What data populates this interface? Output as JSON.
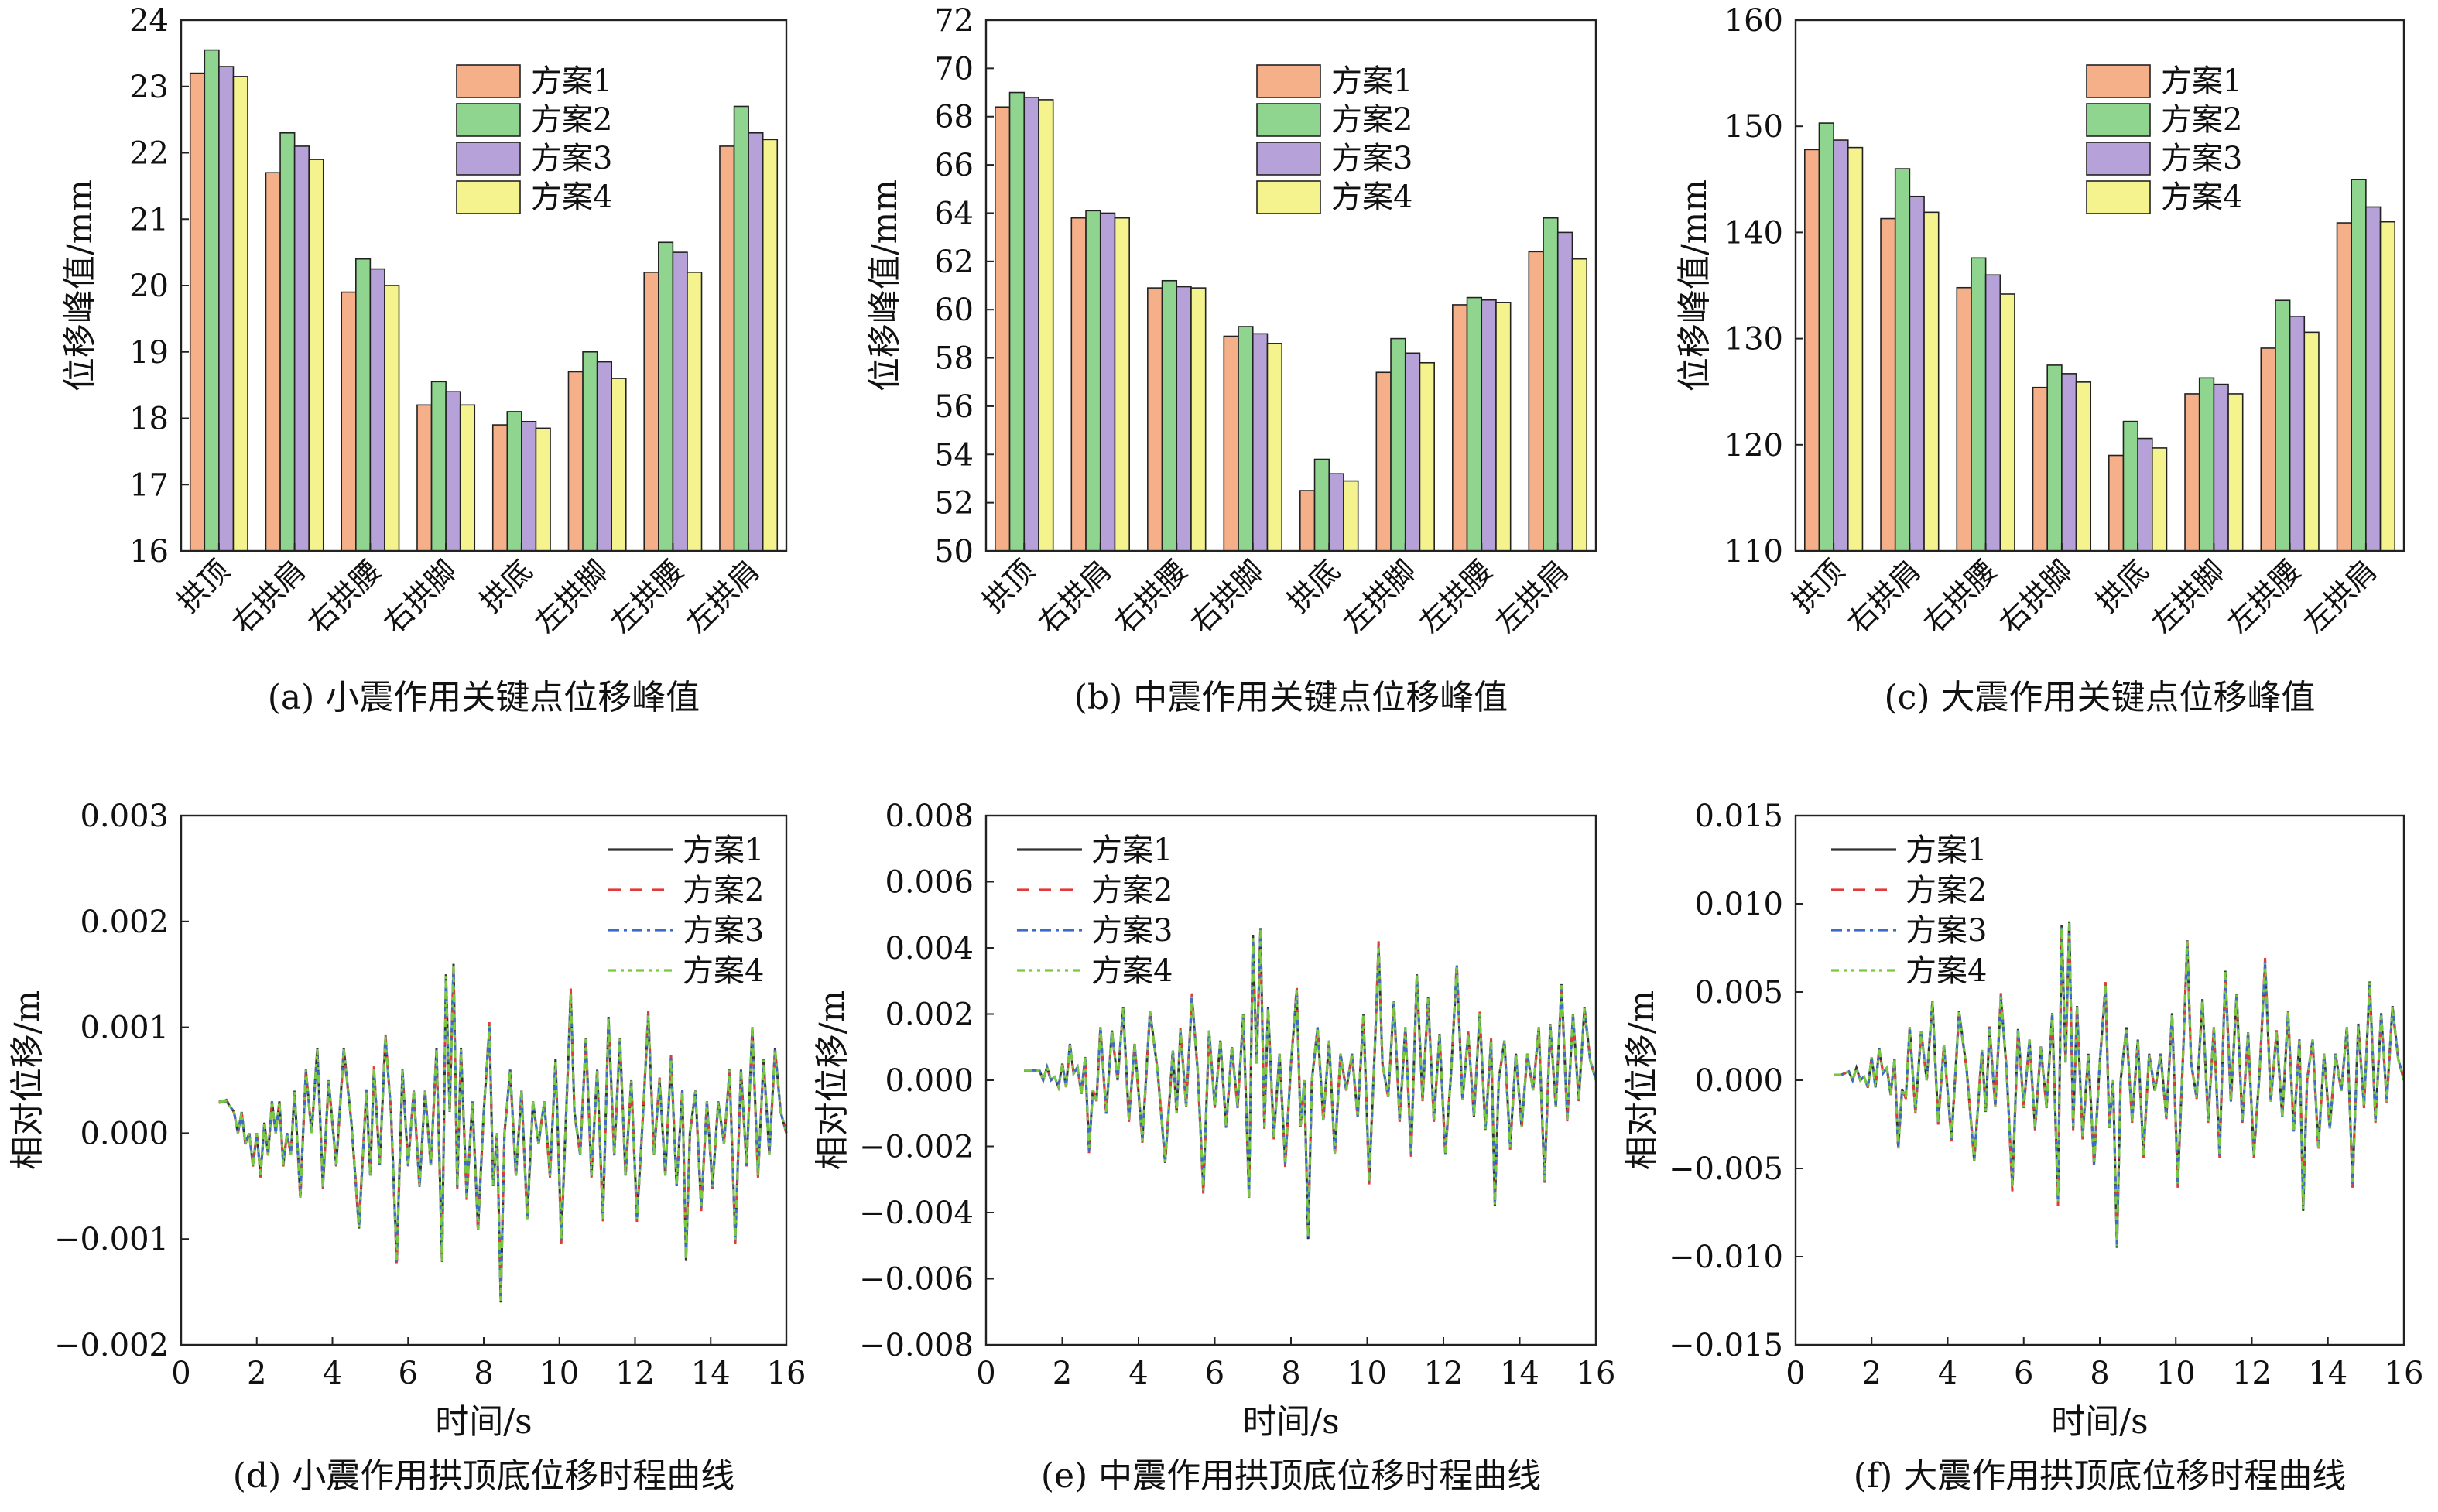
{
  "series_colors": [
    "#f5b089",
    "#8fd48f",
    "#b6a2d8",
    "#f4f38d"
  ],
  "line_colors": [
    "#333333",
    "#e03a3a",
    "#3d6cc8",
    "#78c93d"
  ],
  "chart_data": [
    {
      "type": "bar",
      "caption": "(a) 小震作用关键点位移峰值",
      "categories": [
        "拱顶",
        "右拱肩",
        "右拱腰",
        "右拱脚",
        "拱底",
        "左拱脚",
        "左拱腰",
        "左拱肩"
      ],
      "series": [
        {
          "name": "方案1",
          "values": [
            23.2,
            21.7,
            19.9,
            18.2,
            17.9,
            18.7,
            20.2,
            22.1
          ]
        },
        {
          "name": "方案2",
          "values": [
            23.55,
            22.3,
            20.4,
            18.55,
            18.1,
            19.0,
            20.65,
            22.7
          ]
        },
        {
          "name": "方案3",
          "values": [
            23.3,
            22.1,
            20.25,
            18.4,
            17.95,
            18.85,
            20.5,
            22.3
          ]
        },
        {
          "name": "方案4",
          "values": [
            23.15,
            21.9,
            20.0,
            18.2,
            17.85,
            18.6,
            20.2,
            22.2
          ]
        }
      ],
      "ylabel": "位移峰值/mm",
      "ylim": [
        16,
        24
      ],
      "yticks": [
        "16",
        "17",
        "18",
        "19",
        "20",
        "21",
        "22",
        "23",
        "24"
      ],
      "legend": "top-right",
      "grid": false
    },
    {
      "type": "bar",
      "caption": "(b) 中震作用关键点位移峰值",
      "categories": [
        "拱顶",
        "右拱肩",
        "右拱腰",
        "右拱脚",
        "拱底",
        "左拱脚",
        "左拱腰",
        "左拱肩"
      ],
      "series": [
        {
          "name": "方案1",
          "values": [
            68.4,
            63.8,
            60.9,
            58.9,
            52.5,
            57.4,
            60.2,
            62.4
          ]
        },
        {
          "name": "方案2",
          "values": [
            69.0,
            64.1,
            61.2,
            59.3,
            53.8,
            58.8,
            60.5,
            63.8
          ]
        },
        {
          "name": "方案3",
          "values": [
            68.8,
            64.0,
            60.95,
            59.0,
            53.2,
            58.2,
            60.4,
            63.2
          ]
        },
        {
          "name": "方案4",
          "values": [
            68.7,
            63.8,
            60.9,
            58.6,
            52.9,
            57.8,
            60.3,
            62.1
          ]
        }
      ],
      "ylabel": "位移峰值/mm",
      "ylim": [
        50,
        72
      ],
      "yticks": [
        "50",
        "52",
        "54",
        "56",
        "58",
        "60",
        "62",
        "64",
        "66",
        "68",
        "70",
        "72"
      ],
      "legend": "top-right",
      "grid": false
    },
    {
      "type": "bar",
      "caption": "(c) 大震作用关键点位移峰值",
      "categories": [
        "拱顶",
        "右拱肩",
        "右拱腰",
        "右拱脚",
        "拱底",
        "左拱脚",
        "左拱腰",
        "左拱肩"
      ],
      "series": [
        {
          "name": "方案1",
          "values": [
            147.8,
            141.3,
            134.8,
            125.4,
            119.0,
            124.8,
            129.1,
            140.9
          ]
        },
        {
          "name": "方案2",
          "values": [
            150.3,
            146.0,
            137.6,
            127.5,
            122.2,
            126.3,
            133.6,
            145.0
          ]
        },
        {
          "name": "方案3",
          "values": [
            148.7,
            143.4,
            136.0,
            126.7,
            120.6,
            125.7,
            132.1,
            142.4
          ]
        },
        {
          "name": "方案4",
          "values": [
            148.0,
            141.9,
            134.2,
            125.9,
            119.7,
            124.8,
            130.6,
            141.0
          ]
        }
      ],
      "ylabel": "位移峰值/mm",
      "ylim": [
        110,
        160
      ],
      "yticks": [
        "110",
        "120",
        "130",
        "140",
        "150",
        "160"
      ],
      "legend": "top-right",
      "grid": false
    },
    {
      "type": "line",
      "caption": "(d) 小震作用拱顶底位移时程曲线",
      "xlabel": "时间/s",
      "ylabel": "相对位移/m",
      "xlim": [
        0,
        16
      ],
      "ylim": [
        -0.002,
        0.003
      ],
      "xticks": [
        "0",
        "2",
        "4",
        "6",
        "8",
        "10",
        "12",
        "14",
        "16"
      ],
      "yticks": [
        "−0.002",
        "−0.001",
        "0.000",
        "0.001",
        "0.002",
        "0.003"
      ],
      "legend": "top-right",
      "grid": false,
      "series": [
        {
          "name": "方案1"
        },
        {
          "name": "方案2"
        },
        {
          "name": "方案3"
        },
        {
          "name": "方案4"
        }
      ],
      "x": [
        1.0,
        1.2,
        1.4,
        1.5,
        1.6,
        1.7,
        1.8,
        1.9,
        2.0,
        2.1,
        2.2,
        2.3,
        2.4,
        2.5,
        2.6,
        2.7,
        2.8,
        2.9,
        3.0,
        3.15,
        3.3,
        3.45,
        3.6,
        3.75,
        3.9,
        4.1,
        4.3,
        4.5,
        4.7,
        4.9,
        5.0,
        5.1,
        5.25,
        5.4,
        5.55,
        5.7,
        5.85,
        6.0,
        6.15,
        6.3,
        6.45,
        6.6,
        6.75,
        6.9,
        7.0,
        7.1,
        7.2,
        7.3,
        7.4,
        7.55,
        7.7,
        7.85,
        8.0,
        8.15,
        8.25,
        8.35,
        8.45,
        8.55,
        8.7,
        8.85,
        9.0,
        9.15,
        9.3,
        9.45,
        9.6,
        9.75,
        9.9,
        10.05,
        10.2,
        10.3,
        10.4,
        10.55,
        10.7,
        10.85,
        11.0,
        11.15,
        11.3,
        11.45,
        11.6,
        11.75,
        11.9,
        12.05,
        12.2,
        12.35,
        12.5,
        12.65,
        12.8,
        12.95,
        13.1,
        13.25,
        13.35,
        13.45,
        13.6,
        13.75,
        13.9,
        14.05,
        14.2,
        14.35,
        14.5,
        14.65,
        14.8,
        14.95,
        15.1,
        15.25,
        15.4,
        15.55,
        15.7,
        15.85,
        16.0
      ],
      "y": [
        0.0003,
        0.0003,
        0.0002,
        0.0,
        0.0002,
        -0.0001,
        0.0,
        -0.0003,
        0.0,
        -0.0004,
        0.0001,
        -0.0002,
        0.0003,
        0.0,
        0.0003,
        -0.0003,
        0.0,
        -0.0002,
        0.0004,
        -0.0006,
        0.0006,
        0.0,
        0.0008,
        -0.0005,
        0.0005,
        -0.0003,
        0.0008,
        0.0001,
        -0.0009,
        0.0004,
        -0.0004,
        0.0006,
        -0.0003,
        0.0009,
        0.0002,
        -0.0012,
        0.0006,
        -0.0003,
        0.0004,
        -0.0005,
        0.0004,
        -0.0003,
        0.0008,
        -0.0012,
        0.0015,
        0.0002,
        0.0016,
        -0.0005,
        0.0008,
        -0.0006,
        0.0003,
        -0.0009,
        0.0002,
        0.001,
        -0.0005,
        0.0,
        -0.0016,
        0.0,
        0.0006,
        -0.0004,
        0.0004,
        -0.0008,
        0.0003,
        -0.0001,
        0.0003,
        -0.0004,
        0.0007,
        -0.001,
        0.0004,
        0.0013,
        0.0002,
        -0.0002,
        0.0009,
        -0.0004,
        0.0006,
        -0.0008,
        0.0011,
        -0.0002,
        0.0009,
        -0.0004,
        0.0005,
        -0.0008,
        0.0001,
        0.0011,
        -0.0002,
        0.0005,
        -0.0004,
        0.0007,
        -0.0005,
        0.0004,
        -0.0012,
        0.0,
        0.0004,
        -0.0007,
        0.0003,
        -0.0005,
        0.0003,
        -0.0001,
        0.0006,
        -0.001,
        0.0006,
        -0.0003,
        0.001,
        -0.0004,
        0.0007,
        -0.0002,
        0.0008,
        0.0002,
        0.0
      ]
    },
    {
      "type": "line",
      "caption": "(e) 中震作用拱顶底位移时程曲线",
      "xlabel": "时间/s",
      "ylabel": "相对位移/m",
      "xlim": [
        0,
        16
      ],
      "ylim": [
        -0.008,
        0.008
      ],
      "xticks": [
        "0",
        "2",
        "4",
        "6",
        "8",
        "10",
        "12",
        "14",
        "16"
      ],
      "yticks": [
        "−0.008",
        "−0.006",
        "−0.004",
        "−0.002",
        "0.000",
        "0.002",
        "0.004",
        "0.006",
        "0.008"
      ],
      "legend": "top-left",
      "grid": false,
      "series": [
        {
          "name": "方案1"
        },
        {
          "name": "方案2"
        },
        {
          "name": "方案3"
        },
        {
          "name": "方案4"
        }
      ],
      "x": [
        1.0,
        1.2,
        1.4,
        1.5,
        1.6,
        1.7,
        1.8,
        1.9,
        2.0,
        2.1,
        2.2,
        2.3,
        2.4,
        2.5,
        2.6,
        2.7,
        2.8,
        2.9,
        3.0,
        3.15,
        3.3,
        3.45,
        3.6,
        3.75,
        3.9,
        4.1,
        4.3,
        4.5,
        4.7,
        4.9,
        5.0,
        5.1,
        5.25,
        5.4,
        5.55,
        5.7,
        5.85,
        6.0,
        6.15,
        6.3,
        6.45,
        6.6,
        6.75,
        6.9,
        7.0,
        7.1,
        7.2,
        7.3,
        7.4,
        7.55,
        7.7,
        7.85,
        8.0,
        8.15,
        8.25,
        8.35,
        8.45,
        8.55,
        8.7,
        8.85,
        9.0,
        9.15,
        9.3,
        9.45,
        9.6,
        9.75,
        9.9,
        10.05,
        10.2,
        10.3,
        10.4,
        10.55,
        10.7,
        10.85,
        11.0,
        11.15,
        11.3,
        11.45,
        11.6,
        11.75,
        11.9,
        12.05,
        12.2,
        12.35,
        12.5,
        12.65,
        12.8,
        12.95,
        13.1,
        13.25,
        13.35,
        13.45,
        13.6,
        13.75,
        13.9,
        14.05,
        14.2,
        14.35,
        14.5,
        14.65,
        14.8,
        14.95,
        15.1,
        15.25,
        15.4,
        15.55,
        15.7,
        15.85,
        16.0
      ],
      "y": [
        0.0003,
        0.0003,
        0.0003,
        0.0,
        0.0004,
        0.0,
        0.0001,
        -0.0002,
        0.0005,
        -0.0002,
        0.0011,
        0.0002,
        0.0004,
        -0.0004,
        0.0007,
        -0.0021,
        -0.0003,
        -0.0006,
        0.0016,
        -0.001,
        0.0015,
        0.0,
        0.0022,
        -0.0012,
        0.0011,
        -0.0018,
        0.0021,
        0.0003,
        -0.0025,
        0.0009,
        -0.001,
        0.0015,
        -0.0008,
        0.0025,
        0.0003,
        -0.0033,
        0.0015,
        -0.0008,
        0.0012,
        -0.0014,
        0.001,
        -0.0008,
        0.002,
        -0.0035,
        0.0044,
        0.0005,
        0.0046,
        -0.0014,
        0.0022,
        -0.0017,
        0.0008,
        -0.0025,
        0.0005,
        0.0027,
        -0.0014,
        0.0,
        -0.0048,
        0.0,
        0.0016,
        -0.0012,
        0.0012,
        -0.0022,
        0.0008,
        -0.0003,
        0.0008,
        -0.0011,
        0.002,
        -0.003,
        0.001,
        0.004,
        0.0005,
        -0.0005,
        0.0024,
        -0.0012,
        0.0016,
        -0.0022,
        0.0032,
        -0.0006,
        0.0025,
        -0.0012,
        0.0014,
        -0.0022,
        0.0002,
        0.0034,
        -0.0006,
        0.0014,
        -0.0011,
        0.002,
        -0.0015,
        0.0012,
        -0.0038,
        0.0,
        0.0012,
        -0.002,
        0.0008,
        -0.0014,
        0.0008,
        -0.0003,
        0.0016,
        -0.003,
        0.0017,
        -0.0008,
        0.0029,
        -0.0012,
        0.002,
        -0.0006,
        0.0022,
        0.0006,
        0.0
      ]
    },
    {
      "type": "line",
      "caption": "(f) 大震作用拱顶底位移时程曲线",
      "xlabel": "时间/s",
      "ylabel": "相对位移/m",
      "xlim": [
        0,
        16
      ],
      "ylim": [
        -0.015,
        0.015
      ],
      "xticks": [
        "0",
        "2",
        "4",
        "6",
        "8",
        "10",
        "12",
        "14",
        "16"
      ],
      "yticks": [
        "−0.015",
        "−0.010",
        "−0.005",
        "0.000",
        "0.005",
        "0.010",
        "0.015"
      ],
      "legend": "top-left",
      "grid": false,
      "series": [
        {
          "name": "方案1"
        },
        {
          "name": "方案2"
        },
        {
          "name": "方案3"
        },
        {
          "name": "方案4"
        }
      ],
      "x": [
        1.0,
        1.2,
        1.4,
        1.5,
        1.6,
        1.7,
        1.8,
        1.9,
        2.0,
        2.1,
        2.2,
        2.3,
        2.4,
        2.5,
        2.6,
        2.7,
        2.8,
        2.9,
        3.0,
        3.15,
        3.3,
        3.45,
        3.6,
        3.75,
        3.9,
        4.1,
        4.3,
        4.5,
        4.7,
        4.9,
        5.0,
        5.1,
        5.25,
        5.4,
        5.55,
        5.7,
        5.85,
        6.0,
        6.15,
        6.3,
        6.45,
        6.6,
        6.75,
        6.9,
        7.0,
        7.1,
        7.2,
        7.3,
        7.4,
        7.55,
        7.7,
        7.85,
        8.0,
        8.15,
        8.25,
        8.35,
        8.45,
        8.55,
        8.7,
        8.85,
        9.0,
        9.15,
        9.3,
        9.45,
        9.6,
        9.75,
        9.9,
        10.05,
        10.2,
        10.3,
        10.4,
        10.55,
        10.7,
        10.85,
        11.0,
        11.15,
        11.3,
        11.45,
        11.6,
        11.75,
        11.9,
        12.05,
        12.2,
        12.35,
        12.5,
        12.65,
        12.8,
        12.95,
        13.1,
        13.25,
        13.35,
        13.45,
        13.6,
        13.75,
        13.9,
        14.05,
        14.2,
        14.35,
        14.5,
        14.65,
        14.8,
        14.95,
        15.1,
        15.25,
        15.4,
        15.55,
        15.7,
        15.85,
        16.0
      ],
      "y": [
        0.0003,
        0.0003,
        0.0005,
        0.0,
        0.0007,
        0.0,
        0.0002,
        -0.0004,
        0.0013,
        -0.0004,
        0.0018,
        0.0004,
        0.0007,
        -0.0008,
        0.0012,
        -0.0038,
        -0.0005,
        -0.001,
        0.003,
        -0.0018,
        0.0028,
        0.0,
        0.0045,
        -0.0024,
        0.002,
        -0.0033,
        0.0039,
        0.0006,
        -0.0046,
        0.0017,
        -0.0018,
        0.0029,
        -0.0015,
        0.0047,
        0.0006,
        -0.006,
        0.0029,
        -0.0015,
        0.0023,
        -0.0027,
        0.0019,
        -0.0015,
        0.0038,
        -0.0068,
        0.0088,
        0.001,
        0.009,
        -0.0027,
        0.0042,
        -0.0032,
        0.0015,
        -0.0047,
        0.001,
        0.0053,
        -0.0027,
        0.0,
        -0.0095,
        0.0,
        0.003,
        -0.0023,
        0.0023,
        -0.0042,
        0.0015,
        -0.0006,
        0.0015,
        -0.0021,
        0.0038,
        -0.0058,
        0.0019,
        0.0078,
        0.001,
        -0.001,
        0.0046,
        -0.0023,
        0.003,
        -0.0042,
        0.0062,
        -0.0012,
        0.0049,
        -0.0023,
        0.0027,
        -0.0042,
        0.0004,
        0.0066,
        -0.0012,
        0.0027,
        -0.0021,
        0.0038,
        -0.0029,
        0.0023,
        -0.0074,
        0.0,
        0.0023,
        -0.0038,
        0.0015,
        -0.0027,
        0.0015,
        -0.0006,
        0.003,
        -0.0058,
        0.0032,
        -0.0015,
        0.0056,
        -0.0023,
        0.0038,
        -0.0012,
        0.0042,
        0.0012,
        0.0
      ]
    }
  ]
}
